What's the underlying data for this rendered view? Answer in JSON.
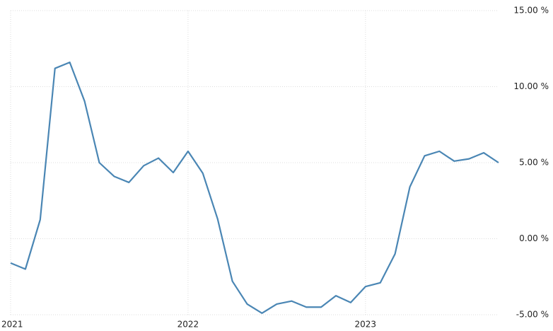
{
  "chart_data": {
    "type": "line",
    "categories": [
      "2021",
      null,
      null,
      null,
      null,
      null,
      null,
      null,
      null,
      null,
      null,
      null,
      "2022",
      null,
      null,
      null,
      null,
      null,
      null,
      null,
      null,
      null,
      null,
      null,
      "2023",
      null,
      null,
      null,
      null,
      null,
      null,
      null,
      null,
      null
    ],
    "series": [
      {
        "color": "#4a86b4",
        "values": [
          -1.6,
          -2.0,
          1.25,
          11.2,
          11.6,
          9.05,
          5.0,
          4.1,
          3.7,
          4.8,
          5.3,
          4.35,
          5.75,
          4.3,
          1.3,
          -2.8,
          -4.3,
          -4.9,
          -4.3,
          -4.1,
          -4.5,
          -4.5,
          -3.75,
          -4.2,
          -3.15,
          -2.9,
          -1.0,
          3.4,
          5.45,
          5.75,
          5.1,
          5.25,
          5.65,
          5.0
        ]
      }
    ],
    "ylim": [
      -5,
      15
    ],
    "yticks": [
      {
        "value": -5,
        "label": "-5.00 %"
      },
      {
        "value": 0,
        "label": "0.00 %"
      },
      {
        "value": 5,
        "label": "5.00 %"
      },
      {
        "value": 10,
        "label": "10.00 %"
      },
      {
        "value": 15,
        "label": "15.00 %"
      }
    ],
    "grid": true
  }
}
